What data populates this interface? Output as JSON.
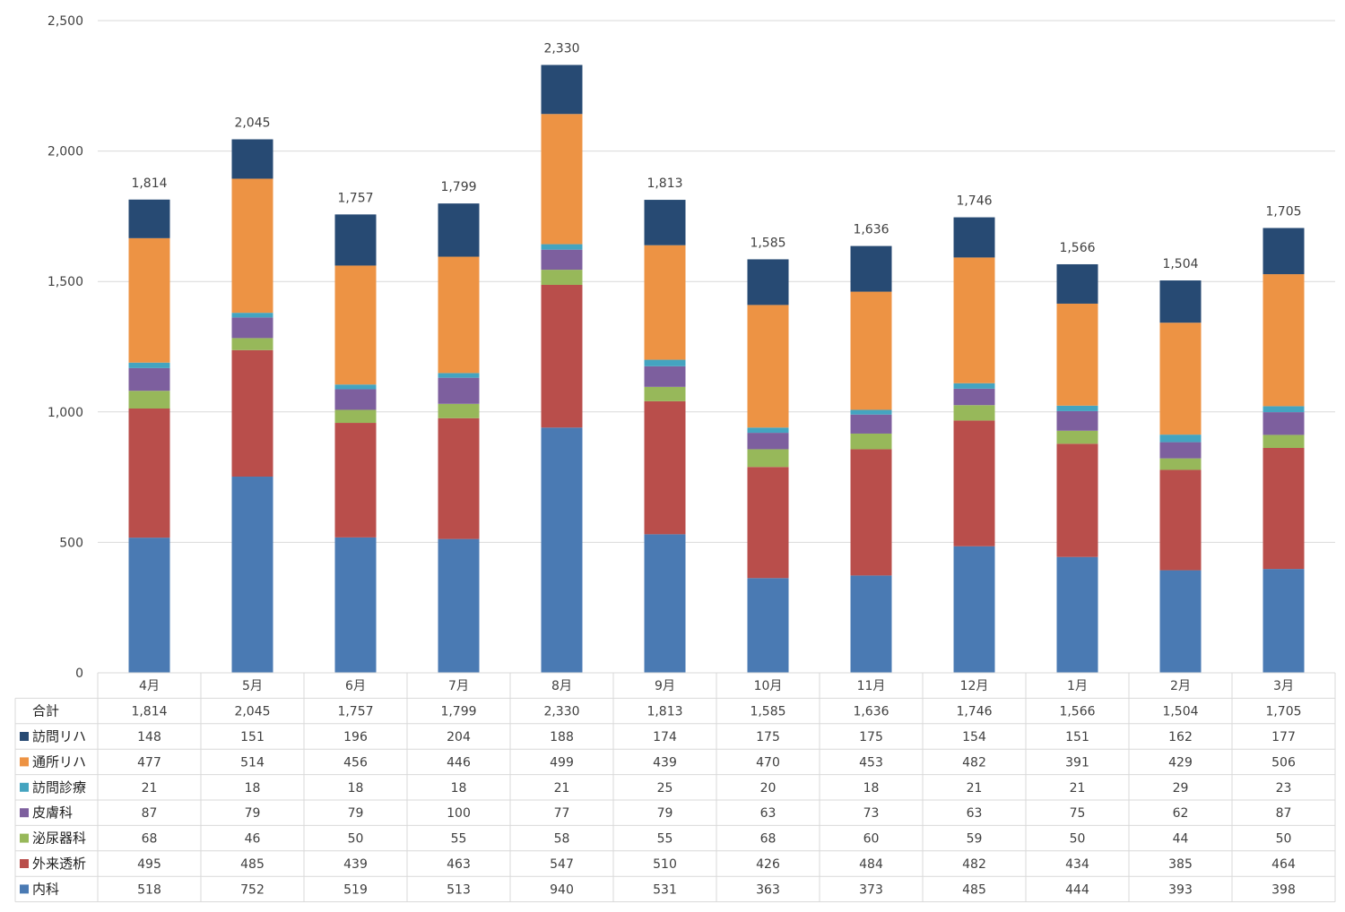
{
  "chart_data": {
    "type": "bar",
    "stacked": true,
    "categories": [
      "4月",
      "5月",
      "6月",
      "7月",
      "8月",
      "9月",
      "10月",
      "11月",
      "12月",
      "1月",
      "2月",
      "3月"
    ],
    "ylim": [
      0,
      2500
    ],
    "yticks": [
      0,
      500,
      1000,
      1500,
      2000,
      2500
    ],
    "ytick_labels": [
      "0",
      "500",
      "1,000",
      "1,500",
      "2,000",
      "2,500"
    ],
    "grid": true,
    "legend": "data-table-left",
    "totals": {
      "name": "合計",
      "values": [
        1814,
        2045,
        1757,
        1799,
        2330,
        1813,
        1585,
        1636,
        1746,
        1566,
        1504,
        1705
      ],
      "labels": [
        "1,814",
        "2,045",
        "1,757",
        "1,799",
        "2,330",
        "1,813",
        "1,585",
        "1,636",
        "1,746",
        "1,566",
        "1,504",
        "1,705"
      ]
    },
    "series": [
      {
        "name": "内科",
        "color": "#4a7ab3",
        "values": [
          518,
          752,
          519,
          513,
          940,
          531,
          363,
          373,
          485,
          444,
          393,
          398
        ]
      },
      {
        "name": "外来透析",
        "color": "#b94e4b",
        "values": [
          495,
          485,
          439,
          463,
          547,
          510,
          426,
          484,
          482,
          434,
          385,
          464
        ]
      },
      {
        "name": "泌尿器科",
        "color": "#97b85a",
        "values": [
          68,
          46,
          50,
          55,
          58,
          55,
          68,
          60,
          59,
          50,
          44,
          50
        ]
      },
      {
        "name": "皮膚科",
        "color": "#7d5f9e",
        "values": [
          87,
          79,
          79,
          100,
          77,
          79,
          63,
          73,
          63,
          75,
          62,
          87
        ]
      },
      {
        "name": "訪問診療",
        "color": "#44a4c0",
        "values": [
          21,
          18,
          18,
          18,
          21,
          25,
          20,
          18,
          21,
          21,
          29,
          23
        ]
      },
      {
        "name": "通所リハ",
        "color": "#ed9344",
        "values": [
          477,
          514,
          456,
          446,
          499,
          439,
          470,
          453,
          482,
          391,
          429,
          506
        ]
      },
      {
        "name": "訪問リハ",
        "color": "#274a73",
        "values": [
          148,
          151,
          196,
          204,
          188,
          174,
          175,
          175,
          154,
          151,
          162,
          177
        ]
      }
    ],
    "table_row_order": [
      "訪問リハ",
      "通所リハ",
      "訪問診療",
      "皮膚科",
      "泌尿器科",
      "外来透析",
      "内科"
    ]
  }
}
